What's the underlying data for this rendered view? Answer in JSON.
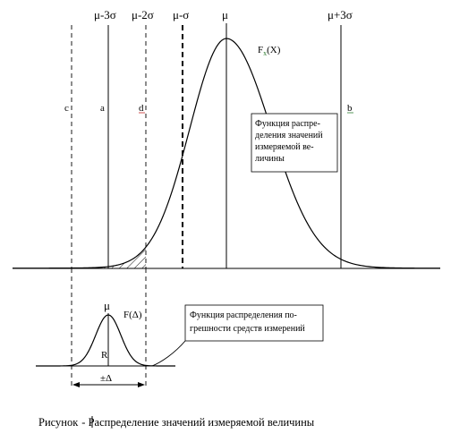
{
  "top_graph": {
    "labels": {
      "mu_minus_3sigma": "μ-3σ",
      "mu_minus_2sigma": "μ-2σ",
      "mu_minus_sigma": "μ-σ",
      "mu": "μ",
      "mu_plus_3sigma": "μ+3σ",
      "curve_label": "F",
      "curve_label_sub": "x",
      "curve_label_arg": "(X)",
      "c": "c",
      "a": "a",
      "d": "d",
      "b": "b"
    },
    "annotation": [
      "Функция распре-",
      "деления значений",
      "измеряемой ве-",
      "личины"
    ]
  },
  "bottom_graph": {
    "labels": {
      "mu": "μ",
      "curve_label": "F",
      "curve_label_arg": "(Δ)",
      "r": "R",
      "delta": "±Δ"
    },
    "annotation": [
      "Функция распределения по-",
      "грешности средств измерений"
    ]
  },
  "caption": {
    "prefix": "Рисунок",
    "text": "- Распределение значений измеряемой величины"
  },
  "colors": {
    "line": "#000000",
    "label_green": "#2e7d32",
    "label_red": "#c62828"
  }
}
